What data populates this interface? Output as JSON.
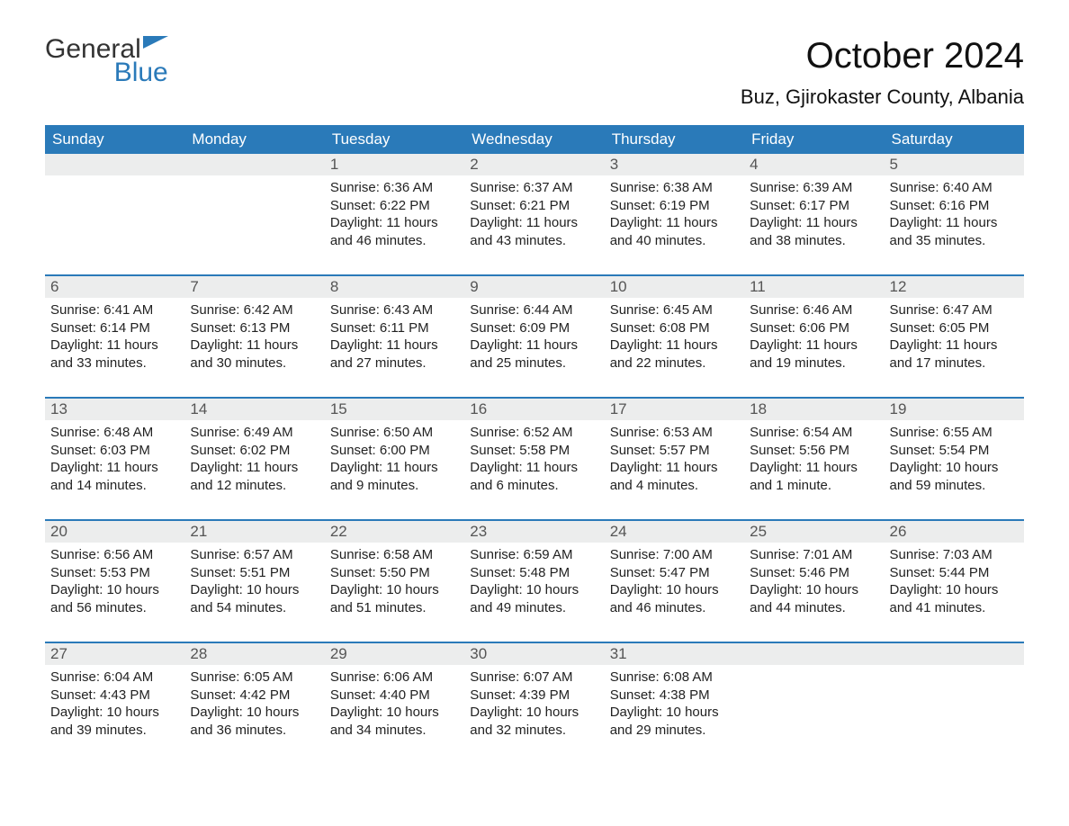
{
  "brand": {
    "part1": "General",
    "part2": "Blue"
  },
  "title": "October 2024",
  "subtitle": "Buz, Gjirokaster County, Albania",
  "colors": {
    "header_bg": "#2a7ab9",
    "header_text": "#ffffff",
    "daynum_bg": "#eceded",
    "row_divider": "#2a7ab9",
    "body_text": "#222222",
    "page_bg": "#ffffff"
  },
  "typography": {
    "title_fontsize": 40,
    "subtitle_fontsize": 22,
    "dow_fontsize": 17,
    "cell_fontsize": 15
  },
  "days_of_week": [
    "Sunday",
    "Monday",
    "Tuesday",
    "Wednesday",
    "Thursday",
    "Friday",
    "Saturday"
  ],
  "weeks": [
    [
      null,
      null,
      {
        "n": "1",
        "sunrise": "6:36 AM",
        "sunset": "6:22 PM",
        "daylight": "11 hours and 46 minutes."
      },
      {
        "n": "2",
        "sunrise": "6:37 AM",
        "sunset": "6:21 PM",
        "daylight": "11 hours and 43 minutes."
      },
      {
        "n": "3",
        "sunrise": "6:38 AM",
        "sunset": "6:19 PM",
        "daylight": "11 hours and 40 minutes."
      },
      {
        "n": "4",
        "sunrise": "6:39 AM",
        "sunset": "6:17 PM",
        "daylight": "11 hours and 38 minutes."
      },
      {
        "n": "5",
        "sunrise": "6:40 AM",
        "sunset": "6:16 PM",
        "daylight": "11 hours and 35 minutes."
      }
    ],
    [
      {
        "n": "6",
        "sunrise": "6:41 AM",
        "sunset": "6:14 PM",
        "daylight": "11 hours and 33 minutes."
      },
      {
        "n": "7",
        "sunrise": "6:42 AM",
        "sunset": "6:13 PM",
        "daylight": "11 hours and 30 minutes."
      },
      {
        "n": "8",
        "sunrise": "6:43 AM",
        "sunset": "6:11 PM",
        "daylight": "11 hours and 27 minutes."
      },
      {
        "n": "9",
        "sunrise": "6:44 AM",
        "sunset": "6:09 PM",
        "daylight": "11 hours and 25 minutes."
      },
      {
        "n": "10",
        "sunrise": "6:45 AM",
        "sunset": "6:08 PM",
        "daylight": "11 hours and 22 minutes."
      },
      {
        "n": "11",
        "sunrise": "6:46 AM",
        "sunset": "6:06 PM",
        "daylight": "11 hours and 19 minutes."
      },
      {
        "n": "12",
        "sunrise": "6:47 AM",
        "sunset": "6:05 PM",
        "daylight": "11 hours and 17 minutes."
      }
    ],
    [
      {
        "n": "13",
        "sunrise": "6:48 AM",
        "sunset": "6:03 PM",
        "daylight": "11 hours and 14 minutes."
      },
      {
        "n": "14",
        "sunrise": "6:49 AM",
        "sunset": "6:02 PM",
        "daylight": "11 hours and 12 minutes."
      },
      {
        "n": "15",
        "sunrise": "6:50 AM",
        "sunset": "6:00 PM",
        "daylight": "11 hours and 9 minutes."
      },
      {
        "n": "16",
        "sunrise": "6:52 AM",
        "sunset": "5:58 PM",
        "daylight": "11 hours and 6 minutes."
      },
      {
        "n": "17",
        "sunrise": "6:53 AM",
        "sunset": "5:57 PM",
        "daylight": "11 hours and 4 minutes."
      },
      {
        "n": "18",
        "sunrise": "6:54 AM",
        "sunset": "5:56 PM",
        "daylight": "11 hours and 1 minute."
      },
      {
        "n": "19",
        "sunrise": "6:55 AM",
        "sunset": "5:54 PM",
        "daylight": "10 hours and 59 minutes."
      }
    ],
    [
      {
        "n": "20",
        "sunrise": "6:56 AM",
        "sunset": "5:53 PM",
        "daylight": "10 hours and 56 minutes."
      },
      {
        "n": "21",
        "sunrise": "6:57 AM",
        "sunset": "5:51 PM",
        "daylight": "10 hours and 54 minutes."
      },
      {
        "n": "22",
        "sunrise": "6:58 AM",
        "sunset": "5:50 PM",
        "daylight": "10 hours and 51 minutes."
      },
      {
        "n": "23",
        "sunrise": "6:59 AM",
        "sunset": "5:48 PM",
        "daylight": "10 hours and 49 minutes."
      },
      {
        "n": "24",
        "sunrise": "7:00 AM",
        "sunset": "5:47 PM",
        "daylight": "10 hours and 46 minutes."
      },
      {
        "n": "25",
        "sunrise": "7:01 AM",
        "sunset": "5:46 PM",
        "daylight": "10 hours and 44 minutes."
      },
      {
        "n": "26",
        "sunrise": "7:03 AM",
        "sunset": "5:44 PM",
        "daylight": "10 hours and 41 minutes."
      }
    ],
    [
      {
        "n": "27",
        "sunrise": "6:04 AM",
        "sunset": "4:43 PM",
        "daylight": "10 hours and 39 minutes."
      },
      {
        "n": "28",
        "sunrise": "6:05 AM",
        "sunset": "4:42 PM",
        "daylight": "10 hours and 36 minutes."
      },
      {
        "n": "29",
        "sunrise": "6:06 AM",
        "sunset": "4:40 PM",
        "daylight": "10 hours and 34 minutes."
      },
      {
        "n": "30",
        "sunrise": "6:07 AM",
        "sunset": "4:39 PM",
        "daylight": "10 hours and 32 minutes."
      },
      {
        "n": "31",
        "sunrise": "6:08 AM",
        "sunset": "4:38 PM",
        "daylight": "10 hours and 29 minutes."
      },
      null,
      null
    ]
  ],
  "labels": {
    "sunrise": "Sunrise: ",
    "sunset": "Sunset: ",
    "daylight": "Daylight: "
  }
}
